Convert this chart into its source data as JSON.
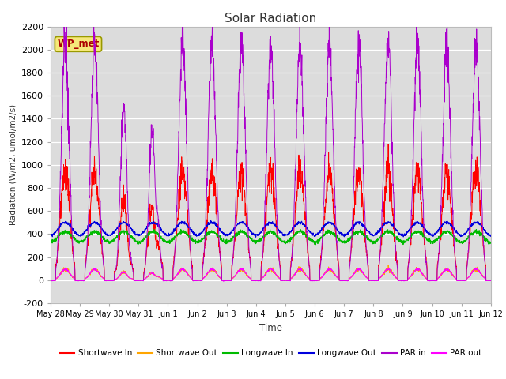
{
  "title": "Solar Radiation",
  "ylabel": "Radiation (W/m2, umol/m2/s)",
  "xlabel": "Time",
  "ylim": [
    -200,
    2200
  ],
  "yticks": [
    -200,
    0,
    200,
    400,
    600,
    800,
    1000,
    1200,
    1400,
    1600,
    1800,
    2000,
    2200
  ],
  "plot_bg": "#dcdcdc",
  "fig_bg": "#ffffff",
  "station_label": "WP_met",
  "series": {
    "shortwave_in": {
      "color": "#ff0000",
      "label": "Shortwave In"
    },
    "shortwave_out": {
      "color": "#ffa500",
      "label": "Shortwave Out"
    },
    "longwave_in": {
      "color": "#00bb00",
      "label": "Longwave In"
    },
    "longwave_out": {
      "color": "#0000dd",
      "label": "Longwave Out"
    },
    "par_in": {
      "color": "#aa00cc",
      "label": "PAR in"
    },
    "par_out": {
      "color": "#ff00ff",
      "label": "PAR out"
    }
  },
  "xtick_labels": [
    "May 28",
    "May 29",
    "May 30",
    "May 31",
    "Jun 1",
    "Jun 2",
    "Jun 3",
    "Jun 4",
    "Jun 5",
    "Jun 6",
    "Jun 7",
    "Jun 8",
    "Jun 9",
    "Jun 10",
    "Jun 11",
    "Jun 12"
  ],
  "xtick_positions": [
    0,
    1,
    2,
    3,
    4,
    5,
    6,
    7,
    8,
    9,
    10,
    11,
    12,
    13,
    14,
    15
  ]
}
